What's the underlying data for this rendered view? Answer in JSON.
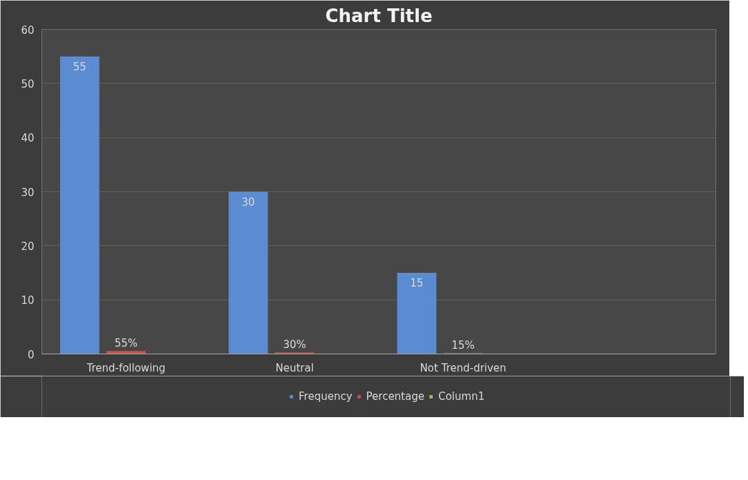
{
  "chart_data": {
    "type": "bar",
    "title": "Chart Title",
    "categories": [
      "Trend-following",
      "Neutral",
      "Not Trend-driven",
      null
    ],
    "series": [
      {
        "name": "Frequency",
        "color": "#5b8bd0",
        "values": [
          55,
          30,
          15,
          null
        ],
        "value_labels": [
          "55",
          "30",
          "15",
          null
        ]
      },
      {
        "name": "Percentage",
        "color": "#d0504d",
        "values": [
          0.55,
          0.3,
          0.15,
          null
        ],
        "value_labels": [
          "55%",
          "30%",
          "15%",
          null
        ]
      },
      {
        "name": "Column1",
        "color": "#9bbb59",
        "values": [
          null,
          null,
          null,
          null
        ]
      }
    ],
    "ylim": [
      0,
      60
    ],
    "yticks": [
      0,
      10,
      20,
      30,
      40,
      50,
      60
    ],
    "grid": "y",
    "legend": "bottom"
  }
}
